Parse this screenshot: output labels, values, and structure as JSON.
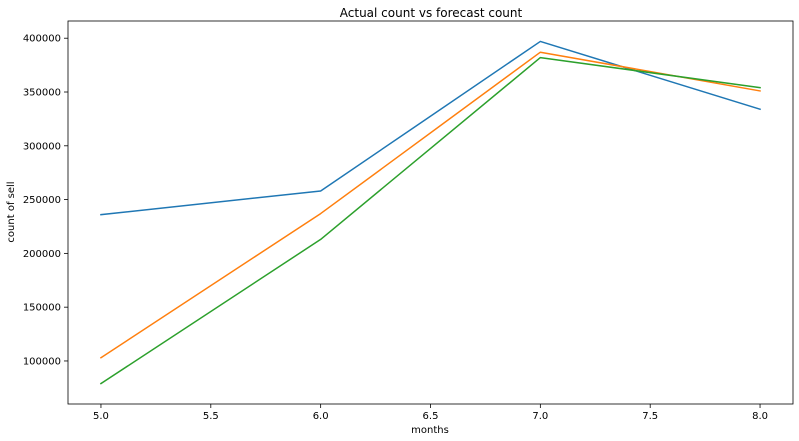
{
  "chart_data": {
    "type": "line",
    "title": "Actual count vs forecast count",
    "xlabel": "months",
    "ylabel": "count of sell",
    "x": [
      5.0,
      6.0,
      7.0,
      8.0
    ],
    "xlim": [
      4.85,
      8.15
    ],
    "ylim": [
      60000,
      416000
    ],
    "xticks": [
      5.0,
      5.5,
      6.0,
      6.5,
      7.0,
      7.5,
      8.0
    ],
    "xtick_labels": [
      "5.0",
      "5.5",
      "6.0",
      "6.5",
      "7.0",
      "7.5",
      "8.0"
    ],
    "yticks": [
      100000,
      150000,
      200000,
      250000,
      300000,
      350000,
      400000
    ],
    "ytick_labels": [
      "100000",
      "150000",
      "200000",
      "250000",
      "300000",
      "350000",
      "400000"
    ],
    "grid": false,
    "series": [
      {
        "color": "#1f77b4",
        "values": [
          236000,
          258000,
          397000,
          334000
        ]
      },
      {
        "color": "#ff7f0e",
        "values": [
          103000,
          237000,
          387000,
          351000
        ]
      },
      {
        "color": "#2ca02c",
        "values": [
          79000,
          213000,
          382000,
          354000
        ]
      }
    ]
  }
}
